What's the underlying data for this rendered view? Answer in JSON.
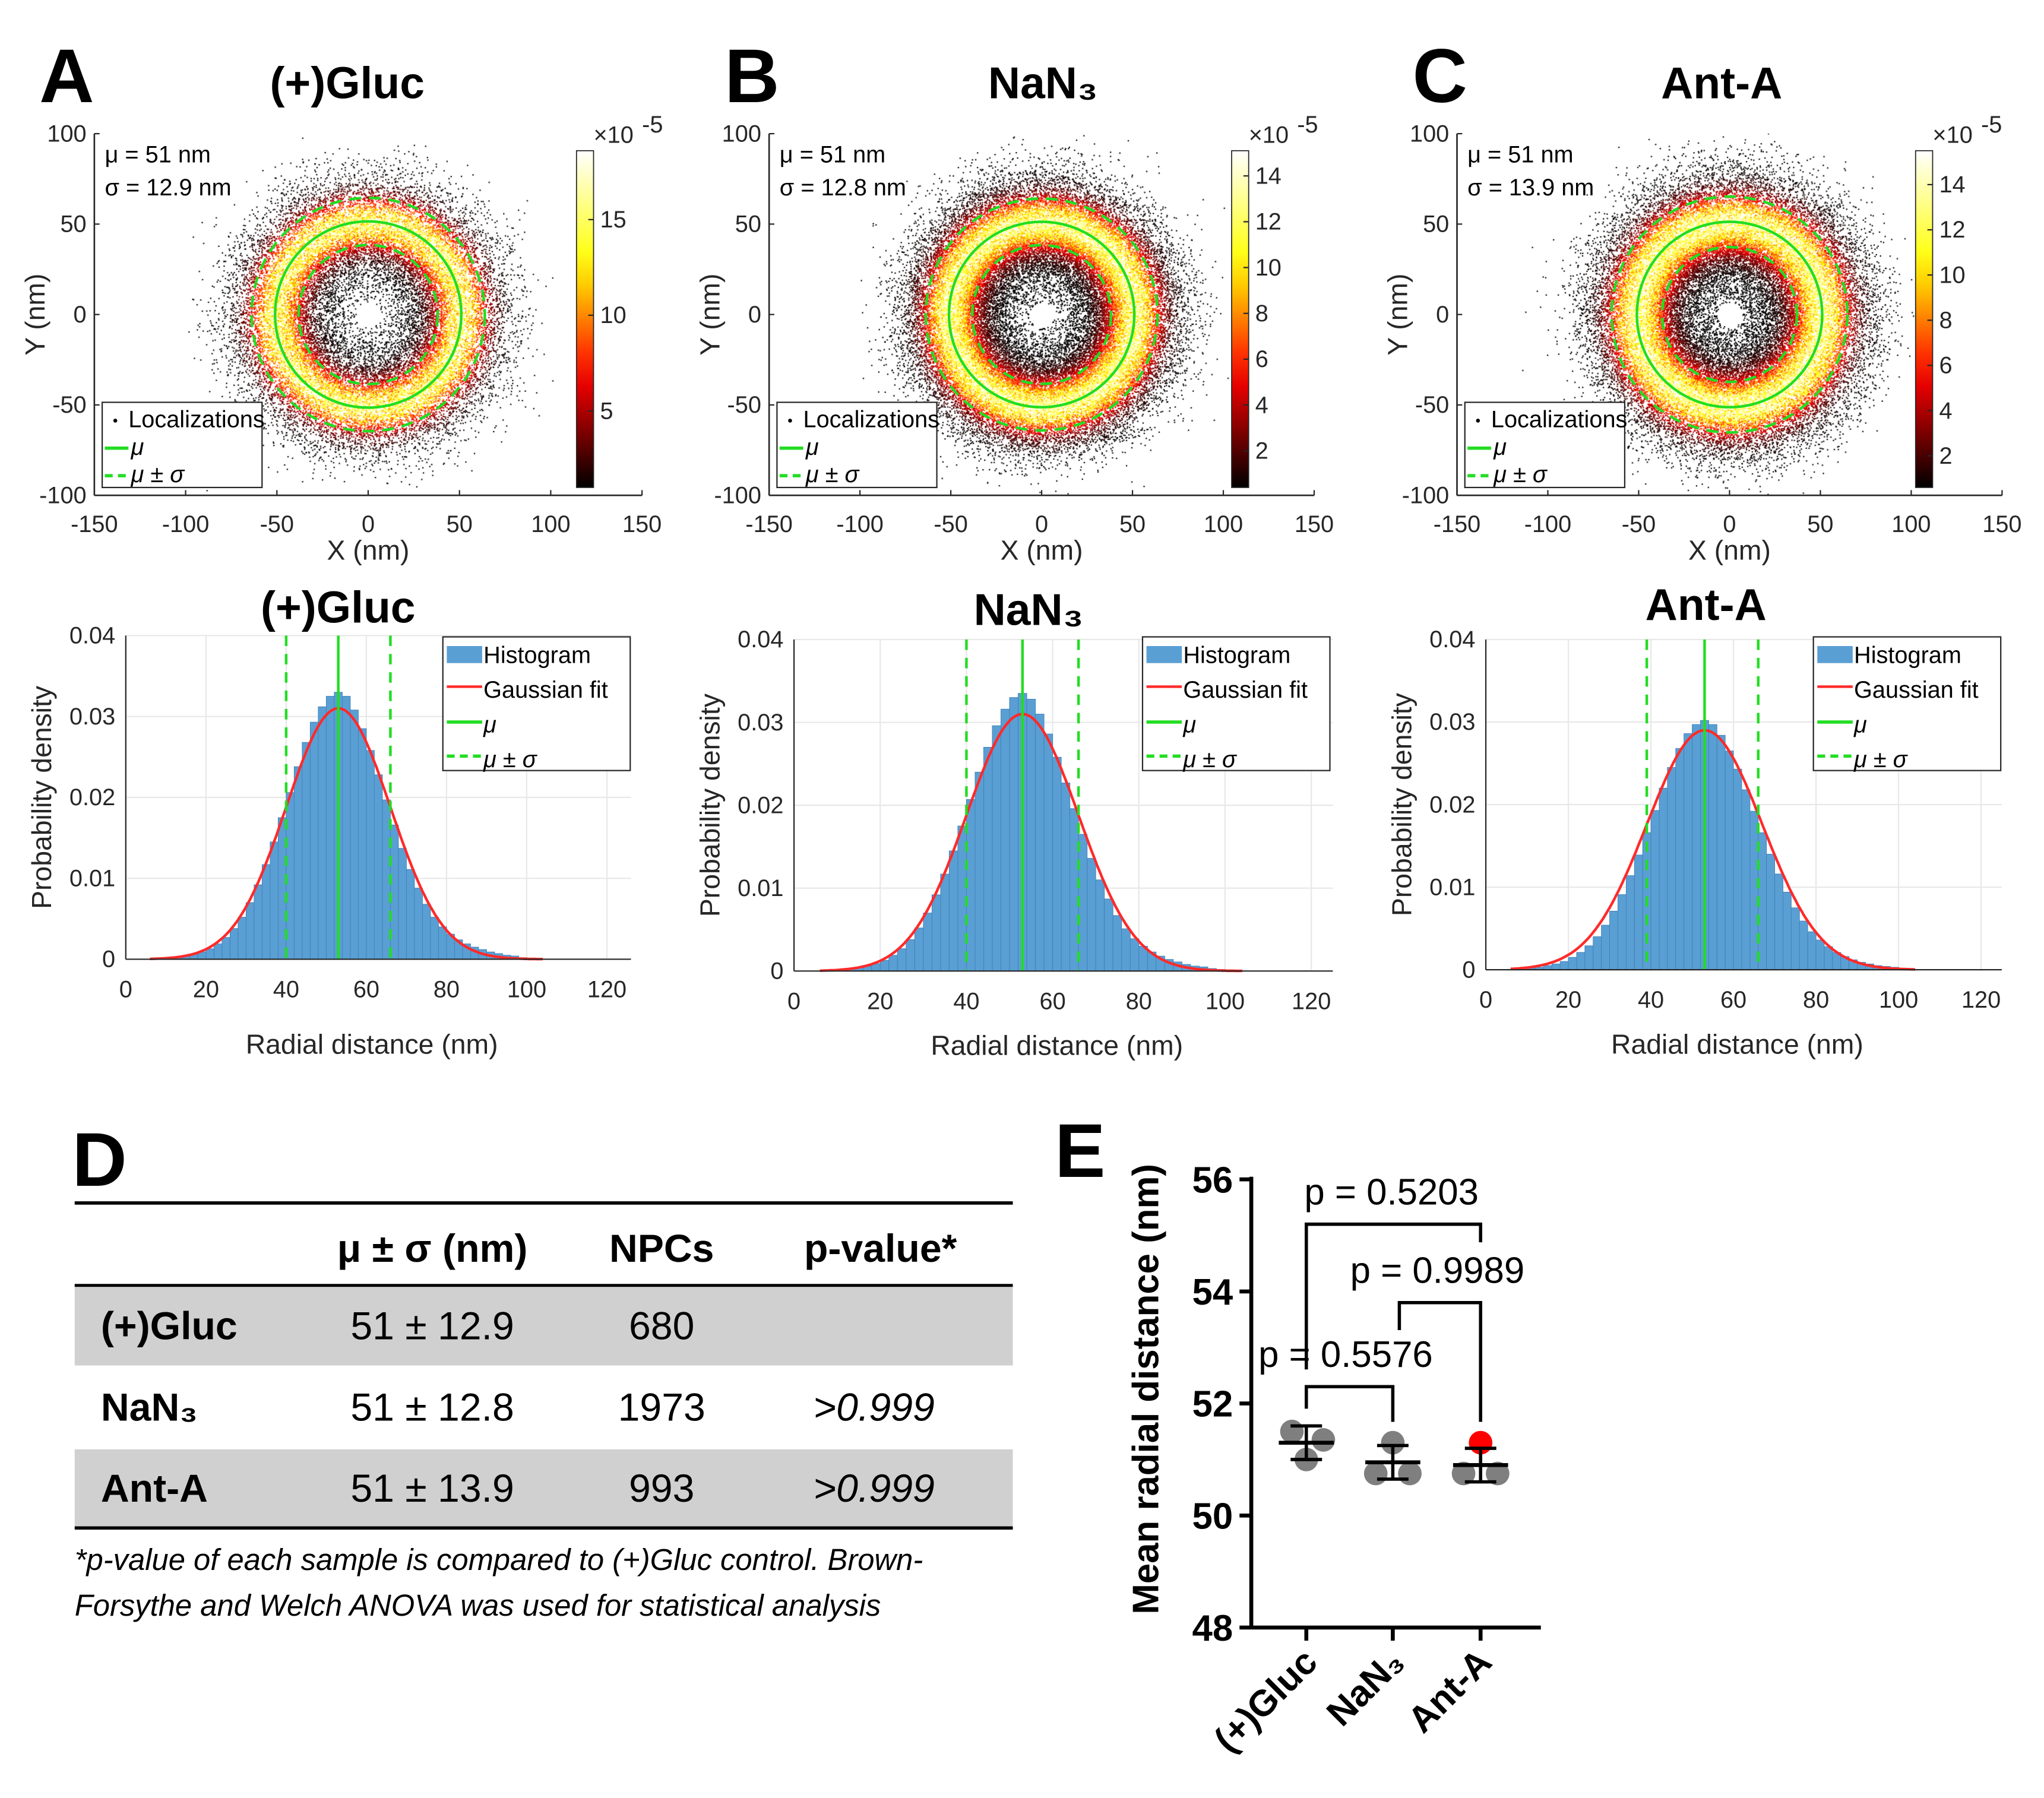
{
  "figure": {
    "panels": [
      {
        "letter": "A",
        "title": "(+)Gluc"
      },
      {
        "letter": "B",
        "title": "NaN₃"
      },
      {
        "letter": "C",
        "title": "Ant-A"
      }
    ],
    "letter_D": "D",
    "letter_E": "E"
  },
  "chart_data": [
    {
      "type": "scatter",
      "panel": "A",
      "title": "(+)Gluc",
      "annotation_mu": "μ = 51 nm",
      "annotation_sigma": "σ = 12.9 nm",
      "mu": 51,
      "sigma": 12.9,
      "xlabel": "X (nm)",
      "ylabel": "Y (nm)",
      "xlim": [
        -150,
        150
      ],
      "ylim": [
        -100,
        100
      ],
      "xticks": [
        -150,
        -100,
        -50,
        0,
        50,
        100,
        150
      ],
      "yticks": [
        -100,
        -50,
        0,
        50,
        100
      ],
      "legend": [
        "Localizations",
        "μ",
        "μ ± σ"
      ],
      "colorbar": {
        "colormap": "hot",
        "exponent_label": "×10",
        "exponent": "-5",
        "ticks": [
          5,
          10,
          15
        ],
        "range": [
          1,
          18.6
        ]
      },
      "colors": {
        "mu_circle": "#22dd22",
        "points": "#000000"
      }
    },
    {
      "type": "bar",
      "panel": "A",
      "title": "(+)Gluc",
      "xlabel": "Radial distance (nm)",
      "ylabel": "Probability density",
      "xlim": [
        0,
        126
      ],
      "ylim": [
        0,
        0.04
      ],
      "xticks": [
        0,
        20,
        40,
        60,
        80,
        100,
        120
      ],
      "yticks": [
        0,
        0.01,
        0.02,
        0.03,
        0.04
      ],
      "grid": true,
      "legend_position": "top-right",
      "legend": [
        "Histogram",
        "Gaussian fit",
        "μ",
        "μ ± σ"
      ],
      "bin_start": 10,
      "bin_width": 2,
      "values": [
        0.0002,
        0.0003,
        0.0004,
        0.0006,
        0.0009,
        0.0013,
        0.0019,
        0.0027,
        0.0038,
        0.0052,
        0.007,
        0.0092,
        0.0117,
        0.0145,
        0.0175,
        0.0206,
        0.0238,
        0.0268,
        0.0293,
        0.0312,
        0.0325,
        0.033,
        0.0325,
        0.0308,
        0.0285,
        0.0258,
        0.0228,
        0.0197,
        0.0166,
        0.0137,
        0.0111,
        0.0088,
        0.0068,
        0.0052,
        0.004,
        0.0031,
        0.0024,
        0.0019,
        0.0015,
        0.0012,
        0.0009,
        0.0007,
        0.0005,
        0.0004,
        0.0002
      ],
      "fit": {
        "mu": 53,
        "sigma": 13,
        "peak": 0.031
      },
      "mu_line": 53,
      "sigma_lines": [
        40,
        66
      ],
      "colors": {
        "bars": "#5a9fd4",
        "fit": "#ff2a2a",
        "lines": "#22dd22"
      }
    },
    {
      "type": "scatter",
      "panel": "B",
      "title": "NaN₃",
      "annotation_mu": "μ = 51 nm",
      "annotation_sigma": "σ = 12.8 nm",
      "mu": 51,
      "sigma": 12.8,
      "xlabel": "X (nm)",
      "ylabel": "Y (nm)",
      "xlim": [
        -150,
        150
      ],
      "ylim": [
        -100,
        100
      ],
      "xticks": [
        -150,
        -100,
        -50,
        0,
        50,
        100,
        150
      ],
      "yticks": [
        -100,
        -50,
        0,
        50,
        100
      ],
      "legend": [
        "Localizations",
        "μ",
        "μ ± σ"
      ],
      "colorbar": {
        "colormap": "hot",
        "exponent_label": "×10",
        "exponent": "-5",
        "ticks": [
          2,
          4,
          6,
          8,
          10,
          12,
          14
        ],
        "range": [
          0.4,
          15.1
        ]
      },
      "colors": {
        "mu_circle": "#22dd22",
        "points": "#000000"
      }
    },
    {
      "type": "bar",
      "panel": "B",
      "title": "NaN₃",
      "xlabel": "Radial distance (nm)",
      "ylabel": "Probability density",
      "xlim": [
        0,
        125
      ],
      "ylim": [
        0,
        0.04
      ],
      "xticks": [
        0,
        20,
        40,
        60,
        80,
        100,
        120
      ],
      "yticks": [
        0,
        0.01,
        0.02,
        0.03,
        0.04
      ],
      "grid": true,
      "legend_position": "top-right",
      "legend": [
        "Histogram",
        "Gaussian fit",
        "μ",
        "μ ± σ"
      ],
      "bin_start": 10,
      "bin_width": 2,
      "values": [
        0.0002,
        0.0003,
        0.0004,
        0.0006,
        0.0009,
        0.0013,
        0.0019,
        0.0027,
        0.0038,
        0.0052,
        0.007,
        0.0092,
        0.0117,
        0.0145,
        0.0175,
        0.0207,
        0.024,
        0.027,
        0.0296,
        0.0316,
        0.033,
        0.0335,
        0.0328,
        0.031,
        0.0286,
        0.0258,
        0.0227,
        0.0196,
        0.0165,
        0.0136,
        0.011,
        0.0087,
        0.0067,
        0.0051,
        0.0039,
        0.003,
        0.0023,
        0.0018,
        0.0014,
        0.0011,
        0.0008,
        0.0006,
        0.0005,
        0.0003,
        0.0002
      ],
      "fit": {
        "mu": 53,
        "sigma": 13,
        "peak": 0.031
      },
      "mu_line": 53,
      "sigma_lines": [
        40,
        66
      ],
      "colors": {
        "bars": "#5a9fd4",
        "fit": "#ff2a2a",
        "lines": "#22dd22"
      }
    },
    {
      "type": "scatter",
      "panel": "C",
      "title": "Ant-A",
      "annotation_mu": "μ = 51 nm",
      "annotation_sigma": "σ = 13.9 nm",
      "mu": 51,
      "sigma": 13.9,
      "xlabel": "X (nm)",
      "ylabel": "Y (nm)",
      "xlim": [
        -150,
        150
      ],
      "ylim": [
        -100,
        100
      ],
      "xticks": [
        -150,
        -100,
        -50,
        0,
        50,
        100,
        150
      ],
      "yticks": [
        -100,
        -50,
        0,
        50,
        100
      ],
      "legend": [
        "Localizations",
        "μ",
        "μ ± σ"
      ],
      "colorbar": {
        "colormap": "hot",
        "exponent_label": "×10",
        "exponent": "-5",
        "ticks": [
          2,
          4,
          6,
          8,
          10,
          12,
          14
        ],
        "range": [
          0.6,
          15.5
        ]
      },
      "colors": {
        "mu_circle": "#22dd22",
        "points": "#000000"
      }
    },
    {
      "type": "bar",
      "panel": "C",
      "title": "Ant-A",
      "xlabel": "Radial distance (nm)",
      "ylabel": "Probability density",
      "xlim": [
        0,
        125
      ],
      "ylim": [
        0,
        0.04
      ],
      "xticks": [
        0,
        20,
        40,
        60,
        80,
        100,
        120
      ],
      "yticks": [
        0,
        0.01,
        0.02,
        0.03,
        0.04
      ],
      "grid": true,
      "legend_position": "top-right",
      "legend": [
        "Histogram",
        "Gaussian fit",
        "μ",
        "μ ± σ"
      ],
      "bin_start": 10,
      "bin_width": 2,
      "values": [
        0.0002,
        0.0003,
        0.0005,
        0.0007,
        0.001,
        0.0015,
        0.0021,
        0.0029,
        0.004,
        0.0054,
        0.0071,
        0.0091,
        0.0114,
        0.0139,
        0.0166,
        0.0193,
        0.022,
        0.0245,
        0.0268,
        0.0286,
        0.0297,
        0.0302,
        0.0297,
        0.0284,
        0.0265,
        0.0243,
        0.0218,
        0.0192,
        0.0166,
        0.014,
        0.0116,
        0.0094,
        0.0075,
        0.0059,
        0.0046,
        0.0036,
        0.0028,
        0.0021,
        0.0016,
        0.0012,
        0.0009,
        0.0007,
        0.0005,
        0.0004,
        0.0003
      ],
      "fit": {
        "mu": 53,
        "sigma": 14,
        "peak": 0.029
      },
      "mu_line": 53,
      "sigma_lines": [
        39,
        66
      ],
      "colors": {
        "bars": "#5a9fd4",
        "fit": "#ff2a2a",
        "lines": "#22dd22"
      }
    },
    {
      "type": "scatter",
      "panel": "E",
      "ylabel": "Mean radial distance (nm)",
      "ylim": [
        48,
        56
      ],
      "yticks": [
        48,
        50,
        52,
        54,
        56
      ],
      "categories": [
        "(+)Gluc",
        "NaN₃",
        "Ant-A"
      ],
      "points": [
        [
          {
            "v": 51.5,
            "color": "#7f7f7f"
          },
          {
            "v": 51.35,
            "color": "#7f7f7f"
          },
          {
            "v": 51.0,
            "color": "#7f7f7f"
          }
        ],
        [
          {
            "v": 51.3,
            "color": "#7f7f7f"
          },
          {
            "v": 50.75,
            "color": "#7f7f7f"
          },
          {
            "v": 50.75,
            "color": "#7f7f7f"
          }
        ],
        [
          {
            "v": 51.3,
            "color": "#ff0000"
          },
          {
            "v": 50.75,
            "color": "#7f7f7f"
          },
          {
            "v": 50.75,
            "color": "#7f7f7f"
          }
        ]
      ],
      "means": [
        51.3,
        50.95,
        50.9
      ],
      "sd": [
        0.3,
        0.3,
        0.3
      ],
      "comparisons": [
        {
          "pair": [
            0,
            1
          ],
          "level": 52.3,
          "label": "p = 0.5576"
        },
        {
          "pair": [
            1,
            2
          ],
          "level": 53.8,
          "label": "p = 0.9989"
        },
        {
          "pair": [
            0,
            2
          ],
          "level": 55.2,
          "label": "p = 0.5203"
        }
      ]
    }
  ],
  "table": {
    "headers": [
      "",
      "μ ± σ (nm)",
      "NPCs",
      "p-value*"
    ],
    "rows": [
      {
        "label": "(+)Gluc",
        "musigma": "51 ± 12.9",
        "npcs": "680",
        "p": "",
        "shaded": true
      },
      {
        "label": "NaN₃",
        "musigma": "51 ± 12.8",
        "npcs": "1973",
        "p": ">0.999",
        "shaded": false
      },
      {
        "label": "Ant-A",
        "musigma": "51 ± 13.9",
        "npcs": "993",
        "p": ">0.999",
        "shaded": true
      }
    ],
    "footnote": [
      "*p-value of each sample is compared to (+)Gluc control. Brown-",
      "Forsythe and Welch ANOVA was used for statistical analysis"
    ],
    "colors": {
      "shade": "#d0d0d0"
    }
  }
}
